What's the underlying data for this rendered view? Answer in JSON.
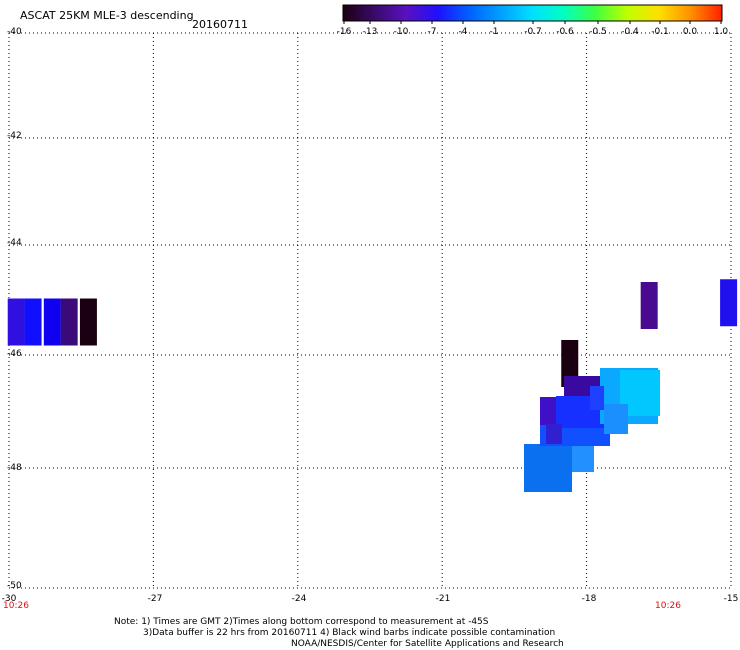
{
  "header": {
    "title": "ASCAT 25KM MLE-3 descending",
    "date": "20160711"
  },
  "colorbar": {
    "labels": [
      "-16",
      "-13",
      "-10",
      "-7",
      "-4",
      "-1",
      "-0.7",
      "-0.6",
      "-0.5",
      "-0.4",
      "-0.1",
      "0.0",
      "1.0"
    ],
    "colors": [
      "#1a0010",
      "#3a0a6a",
      "#5a10c0",
      "#2010ff",
      "#0060ff",
      "#00a0ff",
      "#00e0ff",
      "#00ffc0",
      "#40ff40",
      "#c0ff00",
      "#ffe000",
      "#ff9000",
      "#ff2000"
    ]
  },
  "map": {
    "y_ticks": [
      "-40",
      "-42",
      "-44",
      "-46",
      "-48",
      "-50"
    ],
    "x_ticks": [
      "-30",
      "-27",
      "-24",
      "-21",
      "-18",
      "-15"
    ],
    "time_left": "10:26",
    "time_right": "10:26",
    "cells": [
      {
        "lon": -29.85,
        "lat": -45.4,
        "color": "#3010e0"
      },
      {
        "lon": -29.5,
        "lat": -45.4,
        "color": "#1010ff"
      },
      {
        "lon": -29.1,
        "lat": -45.4,
        "color": "#1000f0"
      },
      {
        "lon": -28.75,
        "lat": -45.4,
        "color": "#3a0a7a"
      },
      {
        "lon": -28.35,
        "lat": -45.4,
        "color": "#1a0010"
      },
      {
        "lon": -18.35,
        "lat": -46.15,
        "color": "#1a0010"
      },
      {
        "lon": -16.7,
        "lat": -45.1,
        "color": "#4a0a90"
      },
      {
        "lon": -15.05,
        "lat": -45.05,
        "color": "#2010ee"
      }
    ]
  },
  "notes": {
    "line1": "Note: 1) Times are GMT 2)Times along bottom correspond to measurement at -45S",
    "line2": "3)Data buffer is 22 hrs from 20160711 4) Black wind barbs indicate possible contamination",
    "line3": "NOAA/NESDIS/Center for Satellite Applications and Research"
  }
}
